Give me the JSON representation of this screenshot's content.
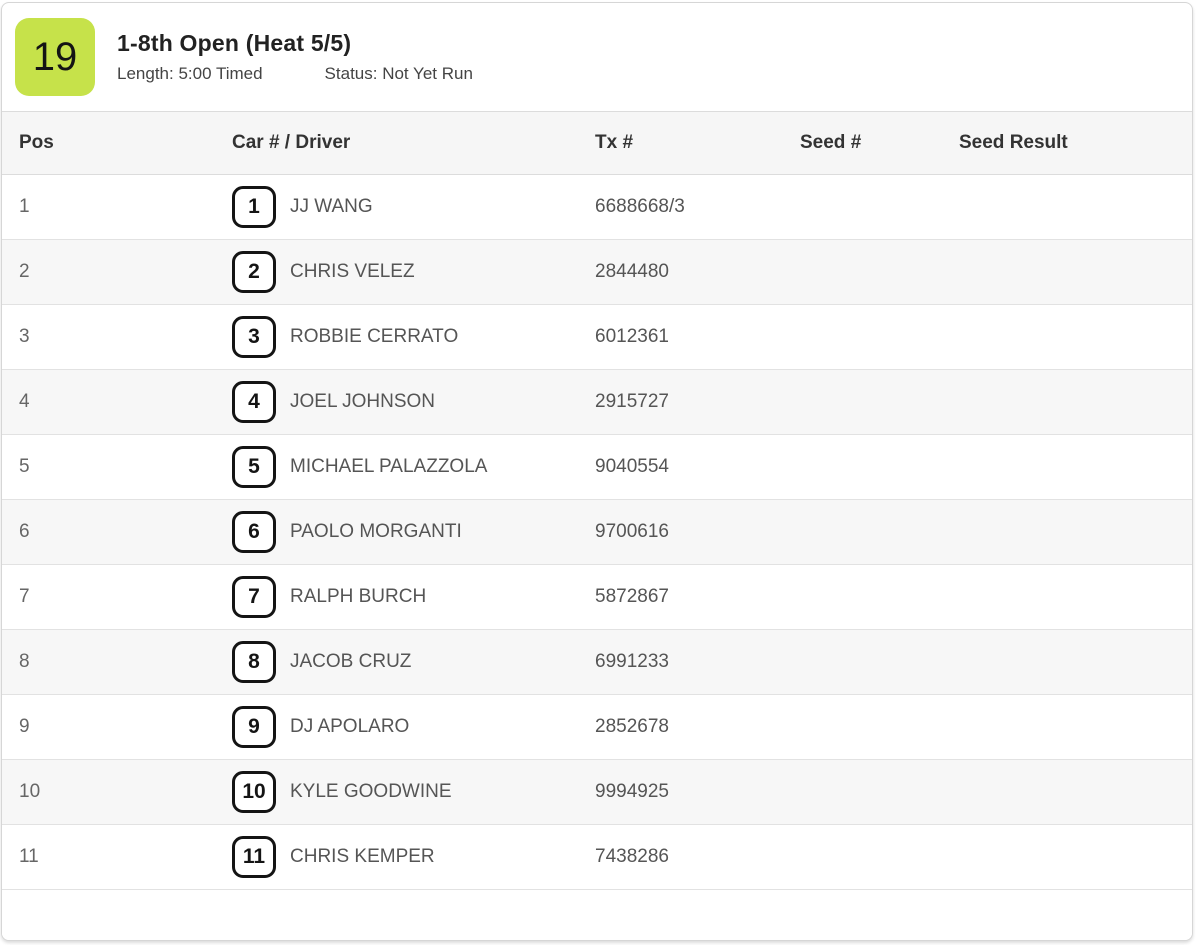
{
  "header": {
    "heat_number": "19",
    "badge_color": "#c6e24a",
    "title": "1-8th Open (Heat 5/5)",
    "length_label": "Length: 5:00 Timed",
    "status_label": "Status: Not Yet Run"
  },
  "table": {
    "columns": [
      "Pos",
      "Car # / Driver",
      "Tx #",
      "Seed #",
      "Seed Result"
    ],
    "rows": [
      {
        "pos": "1",
        "car": "1",
        "driver": "JJ WANG",
        "tx": "6688668/3",
        "seed": "",
        "seed_result": ""
      },
      {
        "pos": "2",
        "car": "2",
        "driver": "CHRIS VELEZ",
        "tx": "2844480",
        "seed": "",
        "seed_result": ""
      },
      {
        "pos": "3",
        "car": "3",
        "driver": "ROBBIE CERRATO",
        "tx": "6012361",
        "seed": "",
        "seed_result": ""
      },
      {
        "pos": "4",
        "car": "4",
        "driver": "JOEL JOHNSON",
        "tx": "2915727",
        "seed": "",
        "seed_result": ""
      },
      {
        "pos": "5",
        "car": "5",
        "driver": "MICHAEL PALAZZOLA",
        "tx": "9040554",
        "seed": "",
        "seed_result": ""
      },
      {
        "pos": "6",
        "car": "6",
        "driver": "PAOLO MORGANTI",
        "tx": "9700616",
        "seed": "",
        "seed_result": ""
      },
      {
        "pos": "7",
        "car": "7",
        "driver": "RALPH BURCH",
        "tx": "5872867",
        "seed": "",
        "seed_result": ""
      },
      {
        "pos": "8",
        "car": "8",
        "driver": "JACOB CRUZ",
        "tx": "6991233",
        "seed": "",
        "seed_result": ""
      },
      {
        "pos": "9",
        "car": "9",
        "driver": "DJ APOLARO",
        "tx": "2852678",
        "seed": "",
        "seed_result": ""
      },
      {
        "pos": "10",
        "car": "10",
        "driver": "KYLE GOODWINE",
        "tx": "9994925",
        "seed": "",
        "seed_result": ""
      },
      {
        "pos": "11",
        "car": "11",
        "driver": "CHRIS KEMPER",
        "tx": "7438286",
        "seed": "",
        "seed_result": ""
      }
    ]
  }
}
